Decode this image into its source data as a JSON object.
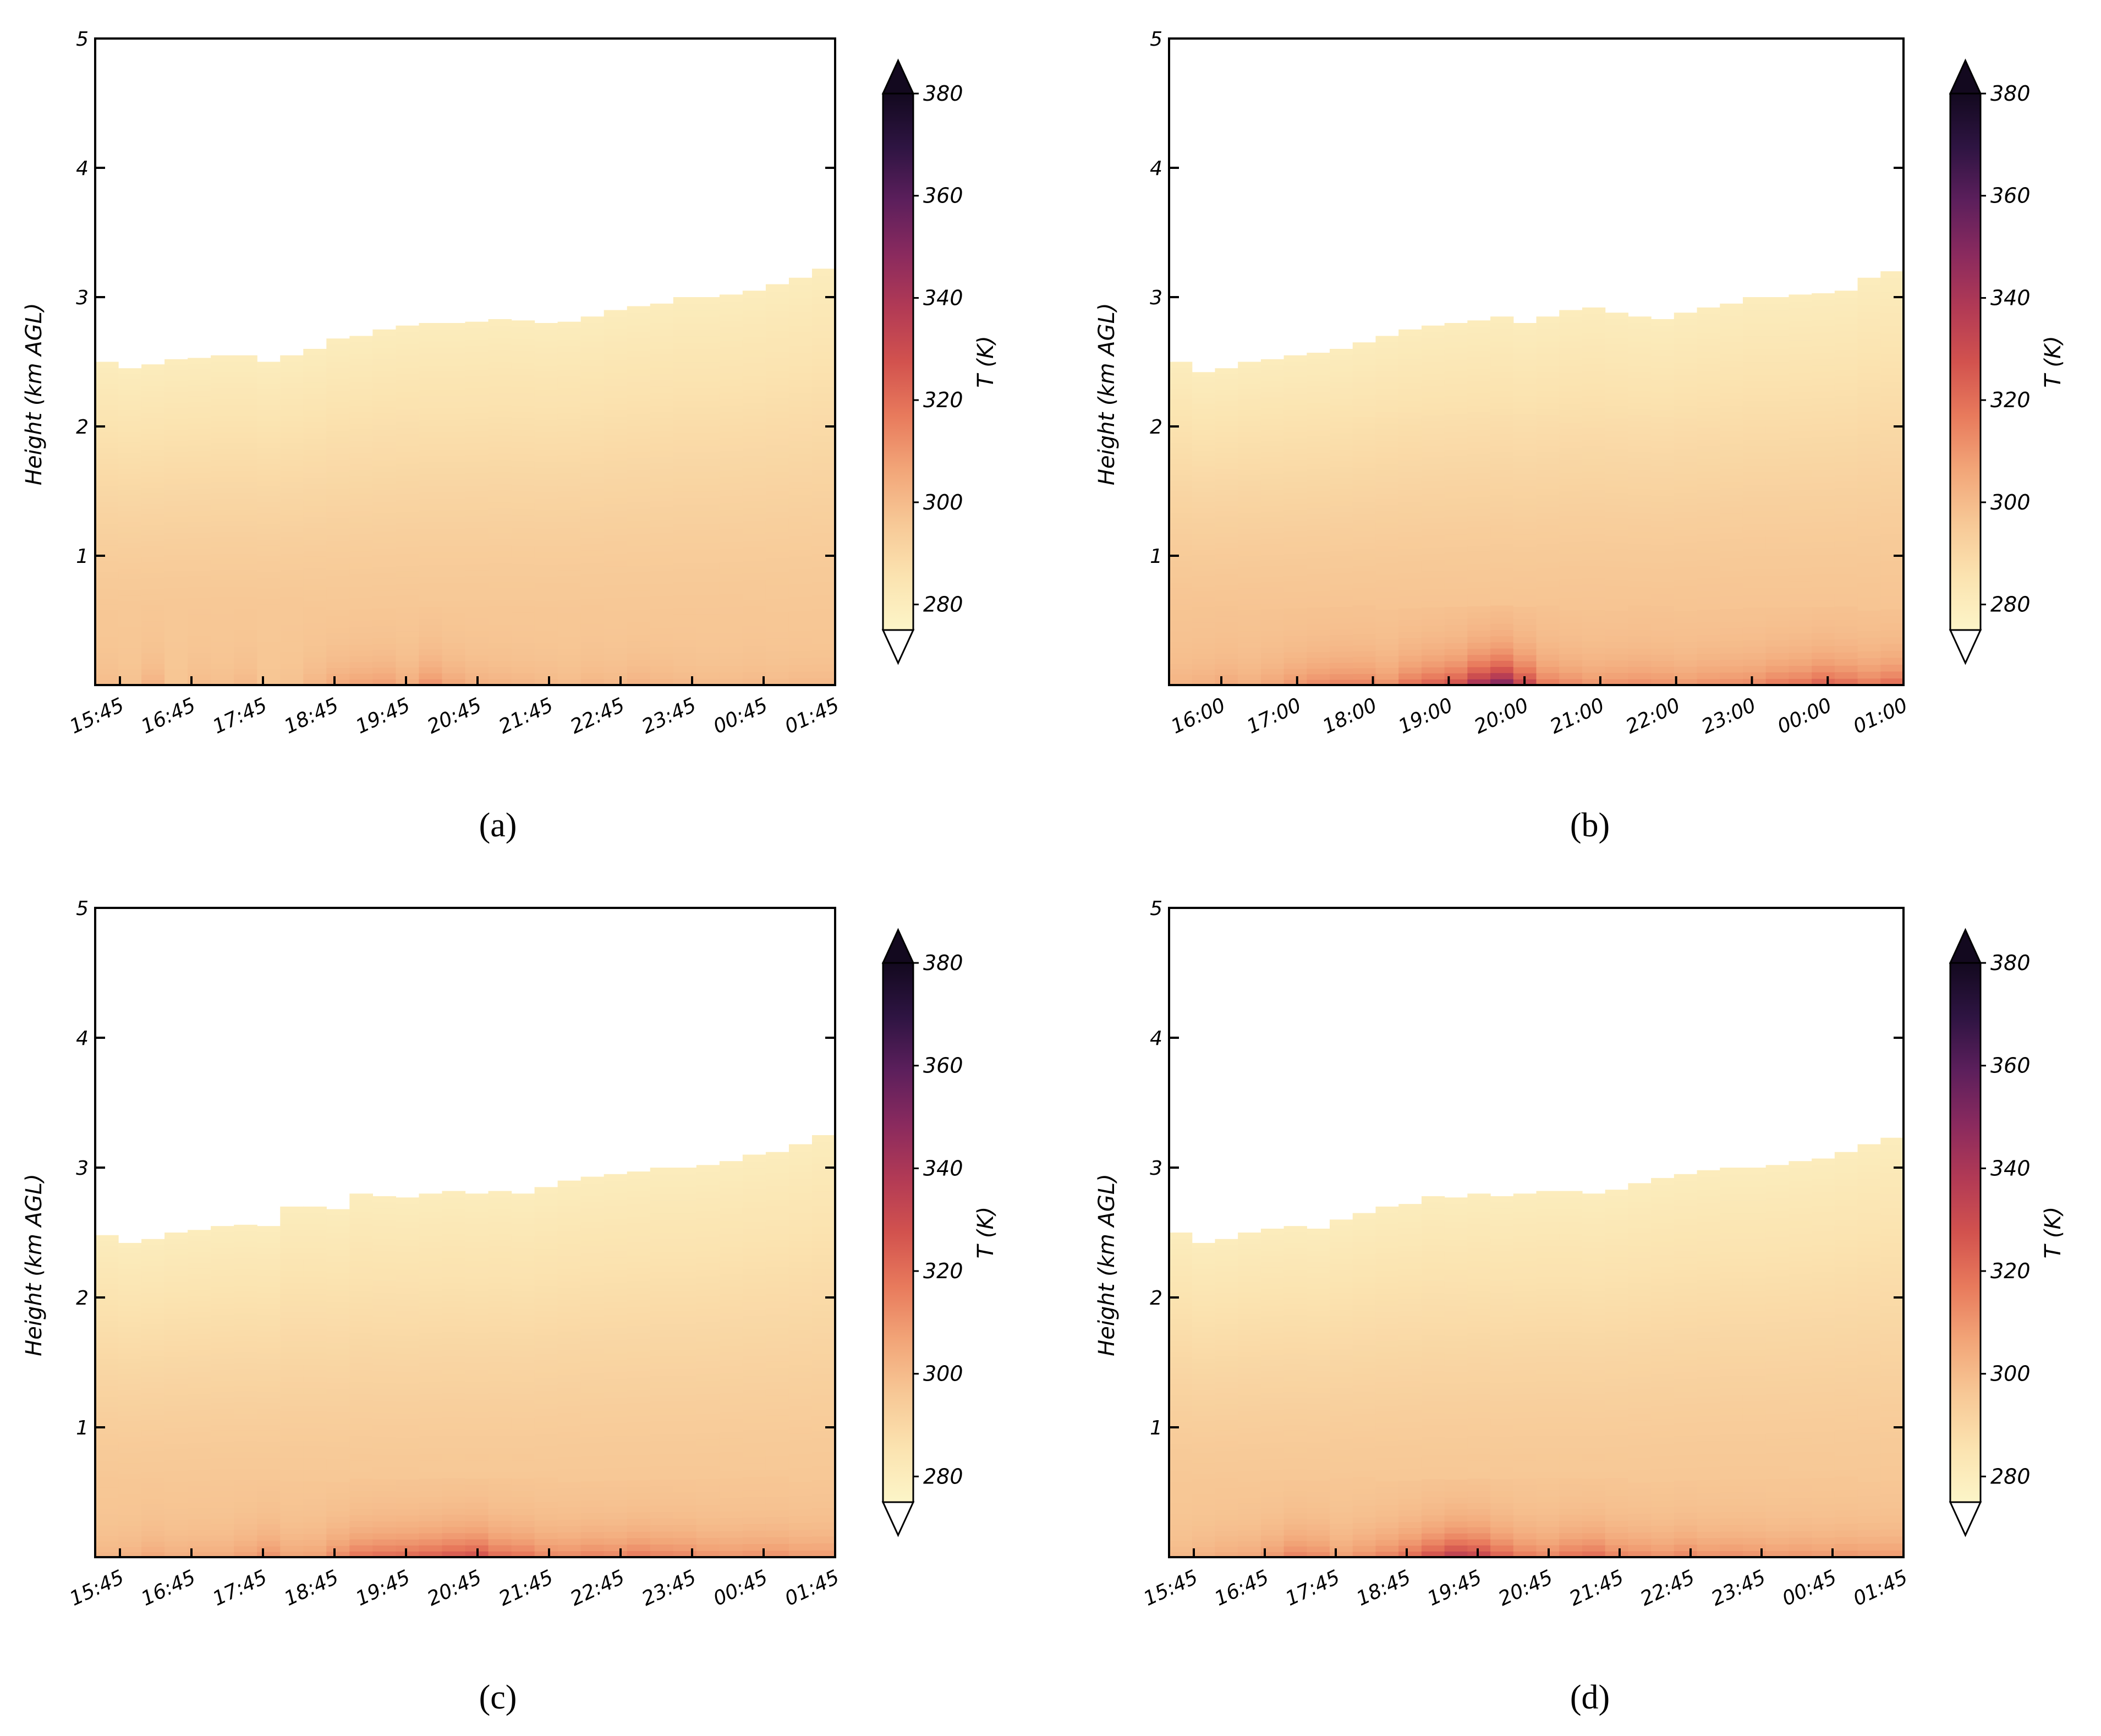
{
  "figure": {
    "panels": [
      "(a)",
      "(b)",
      "(c)",
      "(d)"
    ]
  },
  "colors": {
    "scale": [
      "#fcf5c8",
      "#fbe3b0",
      "#f7c896",
      "#f2a578",
      "#e87a5c",
      "#d2524e",
      "#b23a55",
      "#8a2a5e",
      "#5c1f5c",
      "#2e1442",
      "#13091f"
    ]
  },
  "chart_data": [
    {
      "type": "heatmap",
      "panel_label": "a",
      "title": "",
      "xlabel": "",
      "ylabel": "Height (km AGL)",
      "colorbar_label": "T (K)",
      "colorbar_ticks": [
        280,
        300,
        320,
        340,
        360,
        380
      ],
      "colorbar_range": [
        275,
        380
      ],
      "ylim": [
        0,
        5
      ],
      "yticks": [
        1,
        2,
        3,
        4,
        5
      ],
      "y_tick_labels": [
        "1",
        "2",
        "3",
        "4",
        "5"
      ],
      "x_range_hours": [
        15.25,
        25.75
      ],
      "x_tick_labels": [
        "15:45",
        "16:45",
        "17:45",
        "18:45",
        "19:45",
        "20:45",
        "21:45",
        "22:45",
        "23:45",
        "00:45",
        "01:45"
      ],
      "top_heights_km": [
        2.5,
        2.45,
        2.48,
        2.52,
        2.53,
        2.55,
        2.55,
        2.5,
        2.55,
        2.6,
        2.68,
        2.7,
        2.75,
        2.78,
        2.8,
        2.8,
        2.81,
        2.83,
        2.82,
        2.8,
        2.81,
        2.85,
        2.9,
        2.93,
        2.95,
        3.0,
        3.0,
        3.02,
        3.05,
        3.1,
        3.15,
        3.22
      ],
      "surface_temps_K": [
        300,
        298,
        303,
        297,
        300,
        299,
        301,
        297,
        298,
        302,
        306,
        308,
        309,
        305,
        312,
        307,
        304,
        303,
        302,
        301,
        300,
        302,
        301,
        303,
        302,
        301,
        300,
        300,
        301,
        300,
        301,
        301
      ],
      "upper_temp_K": 296,
      "top_temp_K": 280
    },
    {
      "type": "heatmap",
      "panel_label": "b",
      "title": "",
      "xlabel": "",
      "ylabel": "Height (km AGL)",
      "colorbar_label": "T (K)",
      "colorbar_ticks": [
        280,
        300,
        320,
        340,
        360,
        380
      ],
      "colorbar_range": [
        275,
        380
      ],
      "ylim": [
        0,
        5
      ],
      "yticks": [
        1,
        2,
        3,
        4,
        5
      ],
      "y_tick_labels": [
        "1",
        "2",
        "3",
        "4",
        "5"
      ],
      "x_range_hours": [
        15.5,
        25.0
      ],
      "x_tick_labels": [
        "16:00",
        "17:00",
        "18:00",
        "19:00",
        "20:00",
        "21:00",
        "22:00",
        "23:00",
        "00:00",
        "01:00"
      ],
      "top_heights_km": [
        2.5,
        2.42,
        2.45,
        2.5,
        2.52,
        2.55,
        2.57,
        2.6,
        2.65,
        2.7,
        2.75,
        2.78,
        2.8,
        2.82,
        2.85,
        2.8,
        2.85,
        2.9,
        2.92,
        2.88,
        2.85,
        2.83,
        2.88,
        2.92,
        2.95,
        3.0,
        3.0,
        3.02,
        3.03,
        3.05,
        3.15,
        3.2
      ],
      "surface_temps_K": [
        303,
        304,
        306,
        304,
        307,
        311,
        314,
        316,
        316,
        312,
        320,
        325,
        330,
        345,
        355,
        335,
        318,
        314,
        311,
        312,
        313,
        312,
        310,
        312,
        313,
        314,
        318,
        320,
        325,
        322,
        318,
        322
      ],
      "upper_temp_K": 297,
      "top_temp_K": 280
    },
    {
      "type": "heatmap",
      "panel_label": "c",
      "title": "",
      "xlabel": "",
      "ylabel": "Height (km AGL)",
      "colorbar_label": "T (K)",
      "colorbar_ticks": [
        280,
        300,
        320,
        340,
        360,
        380
      ],
      "colorbar_range": [
        275,
        380
      ],
      "ylim": [
        0,
        5
      ],
      "yticks": [
        1,
        2,
        3,
        4,
        5
      ],
      "y_tick_labels": [
        "1",
        "2",
        "3",
        "4",
        "5"
      ],
      "x_range_hours": [
        15.25,
        25.75
      ],
      "x_tick_labels": [
        "15:45",
        "16:45",
        "17:45",
        "18:45",
        "19:45",
        "20:45",
        "21:45",
        "22:45",
        "23:45",
        "00:45",
        "01:45"
      ],
      "top_heights_km": [
        2.48,
        2.42,
        2.45,
        2.5,
        2.52,
        2.55,
        2.56,
        2.55,
        2.7,
        2.7,
        2.68,
        2.8,
        2.78,
        2.77,
        2.8,
        2.82,
        2.8,
        2.82,
        2.8,
        2.85,
        2.9,
        2.93,
        2.95,
        2.97,
        3.0,
        3.0,
        3.02,
        3.05,
        3.1,
        3.12,
        3.18,
        3.25
      ],
      "surface_temps_K": [
        302,
        303,
        306,
        304,
        305,
        305,
        308,
        312,
        307,
        308,
        314,
        320,
        322,
        323,
        325,
        328,
        330,
        322,
        320,
        315,
        314,
        316,
        315,
        318,
        316,
        315,
        312,
        311,
        312,
        312,
        310,
        310
      ],
      "upper_temp_K": 296,
      "top_temp_K": 280
    },
    {
      "type": "heatmap",
      "panel_label": "d",
      "title": "",
      "xlabel": "",
      "ylabel": "Height (km AGL)",
      "colorbar_label": "T (K)",
      "colorbar_ticks": [
        280,
        300,
        320,
        340,
        360,
        380
      ],
      "colorbar_range": [
        275,
        380
      ],
      "ylim": [
        0,
        5
      ],
      "yticks": [
        1,
        2,
        3,
        4,
        5
      ],
      "y_tick_labels": [
        "1",
        "2",
        "3",
        "4",
        "5"
      ],
      "x_range_hours": [
        15.25,
        25.75
      ],
      "x_tick_labels": [
        "15:45",
        "16:45",
        "17:45",
        "18:45",
        "19:45",
        "20:45",
        "21:45",
        "22:45",
        "23:45",
        "00:45",
        "01:45"
      ],
      "top_heights_km": [
        2.5,
        2.42,
        2.45,
        2.5,
        2.53,
        2.55,
        2.53,
        2.6,
        2.65,
        2.7,
        2.72,
        2.78,
        2.77,
        2.8,
        2.78,
        2.8,
        2.82,
        2.82,
        2.8,
        2.83,
        2.88,
        2.92,
        2.95,
        2.98,
        3.0,
        3.0,
        3.02,
        3.05,
        3.07,
        3.12,
        3.18,
        3.23
      ],
      "surface_temps_K": [
        301,
        303,
        305,
        306,
        310,
        316,
        314,
        308,
        312,
        316,
        322,
        330,
        338,
        335,
        325,
        318,
        315,
        320,
        322,
        316,
        314,
        312,
        315,
        312,
        313,
        312,
        310,
        311,
        310,
        311,
        310,
        310
      ],
      "upper_temp_K": 296,
      "top_temp_K": 280
    }
  ]
}
